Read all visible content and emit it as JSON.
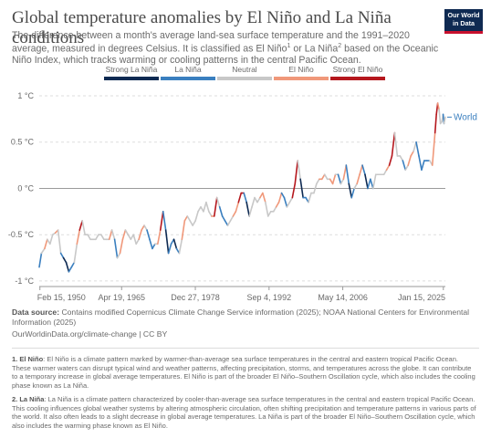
{
  "header": {
    "title": "Global temperature anomalies by El Niño and La Niña conditions",
    "subtitle_part1": "The difference between a month's average land-sea surface temperature and the 1991–2020 average, measured in degrees Celsius. It is classified as El Niño",
    "sup1": "1",
    "subtitle_part2": " or La Niña",
    "sup2": "2",
    "subtitle_part3": " based on the Oceanic Niño Index, which tracks warming or cooling patterns in the central Pacific Ocean."
  },
  "logo": {
    "line1": "Our World",
    "line2": "in Data"
  },
  "legend": [
    {
      "label": "Strong La Niña",
      "color": "#0e2a52"
    },
    {
      "label": "La Niña",
      "color": "#3a7fbf"
    },
    {
      "label": "Neutral",
      "color": "#c8c8c8"
    },
    {
      "label": "El Niño",
      "color": "#f0987a"
    },
    {
      "label": "Strong El Niño",
      "color": "#b5171d"
    }
  ],
  "chart_data": {
    "type": "line",
    "title": "Global temperature anomalies by El Niño and La Niña conditions",
    "ylabel": "",
    "xlabel": "",
    "y_unit": "°C",
    "ylim": [
      -1.05,
      1.0
    ],
    "y_ticks": [
      "1 °C",
      "0.5 °C",
      "0 °C",
      "-0.5 °C",
      "-1 °C"
    ],
    "y_tick_values": [
      1,
      0.5,
      0,
      -0.5,
      -1
    ],
    "x_range": [
      "1950-01-01",
      "2025-06-01"
    ],
    "x_tick_labels": [
      "Feb 15, 1950",
      "Apr 19, 1965",
      "Dec 27, 1978",
      "Sep 4, 1992",
      "May 14, 2006",
      "Jan 15, 2025"
    ],
    "x_tick_dates": [
      "1950-02-15",
      "1965-04-19",
      "1978-12-27",
      "1992-09-04",
      "2006-05-14",
      "2025-01-15"
    ],
    "grid": "horizontal dashed",
    "series_label": "World",
    "last_value": 0.77,
    "categories": [
      "Strong La Niña",
      "La Niña",
      "Neutral",
      "El Niño",
      "Strong El Niño"
    ],
    "series": [
      {
        "name": "World",
        "points": [
          [
            "1950-01-01",
            -0.85,
            "La Niña"
          ],
          [
            "1950-06-01",
            -0.7,
            "La Niña"
          ],
          [
            "1951-01-01",
            -0.65,
            "Neutral"
          ],
          [
            "1951-07-01",
            -0.55,
            "El Niño"
          ],
          [
            "1952-01-01",
            -0.6,
            "Neutral"
          ],
          [
            "1952-07-01",
            -0.5,
            "Neutral"
          ],
          [
            "1953-01-01",
            -0.48,
            "Neutral"
          ],
          [
            "1953-07-01",
            -0.45,
            "El Niño"
          ],
          [
            "1954-01-01",
            -0.7,
            "Neutral"
          ],
          [
            "1954-07-01",
            -0.75,
            "La Niña"
          ],
          [
            "1955-01-01",
            -0.8,
            "Strong La Niña"
          ],
          [
            "1955-07-01",
            -0.9,
            "Strong La Niña"
          ],
          [
            "1956-01-01",
            -0.85,
            "La Niña"
          ],
          [
            "1956-07-01",
            -0.8,
            "La Niña"
          ],
          [
            "1957-01-01",
            -0.6,
            "Neutral"
          ],
          [
            "1957-07-01",
            -0.45,
            "El Niño"
          ],
          [
            "1958-01-01",
            -0.35,
            "Strong El Niño"
          ],
          [
            "1958-07-01",
            -0.5,
            "Neutral"
          ],
          [
            "1959-01-01",
            -0.5,
            "Neutral"
          ],
          [
            "1959-07-01",
            -0.55,
            "Neutral"
          ],
          [
            "1960-01-01",
            -0.55,
            "Neutral"
          ],
          [
            "1960-07-01",
            -0.55,
            "Neutral"
          ],
          [
            "1961-01-01",
            -0.5,
            "Neutral"
          ],
          [
            "1961-07-01",
            -0.5,
            "Neutral"
          ],
          [
            "1962-01-01",
            -0.55,
            "Neutral"
          ],
          [
            "1962-07-01",
            -0.55,
            "Neutral"
          ],
          [
            "1963-01-01",
            -0.55,
            "Neutral"
          ],
          [
            "1963-07-01",
            -0.45,
            "El Niño"
          ],
          [
            "1964-01-01",
            -0.55,
            "Neutral"
          ],
          [
            "1964-07-01",
            -0.75,
            "La Niña"
          ],
          [
            "1965-01-01",
            -0.7,
            "Neutral"
          ],
          [
            "1965-07-01",
            -0.55,
            "El Niño"
          ],
          [
            "1966-01-01",
            -0.45,
            "El Niño"
          ],
          [
            "1966-07-01",
            -0.5,
            "Neutral"
          ],
          [
            "1967-01-01",
            -0.55,
            "Neutral"
          ],
          [
            "1967-07-01",
            -0.5,
            "Neutral"
          ],
          [
            "1968-01-01",
            -0.6,
            "Neutral"
          ],
          [
            "1968-07-01",
            -0.55,
            "Neutral"
          ],
          [
            "1969-01-01",
            -0.45,
            "El Niño"
          ],
          [
            "1969-07-01",
            -0.4,
            "El Niño"
          ],
          [
            "1970-01-01",
            -0.45,
            "Neutral"
          ],
          [
            "1970-07-01",
            -0.55,
            "La Niña"
          ],
          [
            "1971-01-01",
            -0.65,
            "La Niña"
          ],
          [
            "1971-07-01",
            -0.6,
            "La Niña"
          ],
          [
            "1972-01-01",
            -0.6,
            "Neutral"
          ],
          [
            "1972-07-01",
            -0.45,
            "El Niño"
          ],
          [
            "1973-01-01",
            -0.25,
            "Strong El Niño"
          ],
          [
            "1973-07-01",
            -0.45,
            "La Niña"
          ],
          [
            "1974-01-01",
            -0.7,
            "Strong La Niña"
          ],
          [
            "1974-07-01",
            -0.6,
            "La Niña"
          ],
          [
            "1975-01-01",
            -0.55,
            "La Niña"
          ],
          [
            "1975-07-01",
            -0.65,
            "Strong La Niña"
          ],
          [
            "1976-01-01",
            -0.7,
            "La Niña"
          ],
          [
            "1976-07-01",
            -0.55,
            "Neutral"
          ],
          [
            "1977-01-01",
            -0.35,
            "El Niño"
          ],
          [
            "1977-07-01",
            -0.3,
            "El Niño"
          ],
          [
            "1978-01-01",
            -0.35,
            "Neutral"
          ],
          [
            "1978-07-01",
            -0.4,
            "Neutral"
          ],
          [
            "1979-01-01",
            -0.35,
            "Neutral"
          ],
          [
            "1979-07-01",
            -0.25,
            "Neutral"
          ],
          [
            "1980-01-01",
            -0.2,
            "Neutral"
          ],
          [
            "1980-07-01",
            -0.25,
            "Neutral"
          ],
          [
            "1981-01-01",
            -0.15,
            "Neutral"
          ],
          [
            "1981-07-01",
            -0.25,
            "Neutral"
          ],
          [
            "1982-01-01",
            -0.3,
            "Neutral"
          ],
          [
            "1982-07-01",
            -0.3,
            "El Niño"
          ],
          [
            "1983-01-01",
            -0.1,
            "Strong El Niño"
          ],
          [
            "1983-07-01",
            -0.2,
            "Neutral"
          ],
          [
            "1984-01-01",
            -0.3,
            "La Niña"
          ],
          [
            "1984-07-01",
            -0.35,
            "La Niña"
          ],
          [
            "1985-01-01",
            -0.4,
            "La Niña"
          ],
          [
            "1985-07-01",
            -0.35,
            "Neutral"
          ],
          [
            "1986-01-01",
            -0.3,
            "Neutral"
          ],
          [
            "1986-07-01",
            -0.25,
            "El Niño"
          ],
          [
            "1987-01-01",
            -0.15,
            "El Niño"
          ],
          [
            "1987-07-01",
            -0.05,
            "Strong El Niño"
          ],
          [
            "1988-01-01",
            -0.05,
            "Strong El Niño"
          ],
          [
            "1988-07-01",
            -0.15,
            "La Niña"
          ],
          [
            "1989-01-01",
            -0.3,
            "Strong La Niña"
          ],
          [
            "1989-07-01",
            -0.2,
            "Neutral"
          ],
          [
            "1990-01-01",
            -0.1,
            "Neutral"
          ],
          [
            "1990-07-01",
            -0.15,
            "Neutral"
          ],
          [
            "1991-01-01",
            -0.1,
            "Neutral"
          ],
          [
            "1991-07-01",
            -0.05,
            "El Niño"
          ],
          [
            "1992-01-01",
            -0.15,
            "El Niño"
          ],
          [
            "1992-07-01",
            -0.3,
            "Neutral"
          ],
          [
            "1993-01-01",
            -0.25,
            "Neutral"
          ],
          [
            "1993-07-01",
            -0.25,
            "Neutral"
          ],
          [
            "1994-01-01",
            -0.2,
            "Neutral"
          ],
          [
            "1994-07-01",
            -0.15,
            "El Niño"
          ],
          [
            "1995-01-01",
            -0.05,
            "El Niño"
          ],
          [
            "1995-07-01",
            -0.1,
            "La Niña"
          ],
          [
            "1996-01-01",
            -0.2,
            "La Niña"
          ],
          [
            "1996-07-01",
            -0.15,
            "Neutral"
          ],
          [
            "1997-01-01",
            -0.1,
            "Neutral"
          ],
          [
            "1997-07-01",
            0.05,
            "Strong El Niño"
          ],
          [
            "1998-01-01",
            0.3,
            "Strong El Niño"
          ],
          [
            "1998-07-01",
            0.1,
            "Neutral"
          ],
          [
            "1999-01-01",
            -0.1,
            "Strong La Niña"
          ],
          [
            "1999-07-01",
            -0.1,
            "La Niña"
          ],
          [
            "2000-01-01",
            -0.15,
            "La Niña"
          ],
          [
            "2000-07-01",
            -0.05,
            "Neutral"
          ],
          [
            "2001-01-01",
            -0.05,
            "Neutral"
          ],
          [
            "2001-07-01",
            0.05,
            "Neutral"
          ],
          [
            "2002-01-01",
            0.1,
            "Neutral"
          ],
          [
            "2002-07-01",
            0.1,
            "El Niño"
          ],
          [
            "2003-01-01",
            0.15,
            "El Niño"
          ],
          [
            "2003-07-01",
            0.1,
            "Neutral"
          ],
          [
            "2004-01-01",
            0.1,
            "Neutral"
          ],
          [
            "2004-07-01",
            0.05,
            "El Niño"
          ],
          [
            "2005-01-01",
            0.15,
            "El Niño"
          ],
          [
            "2005-07-01",
            0.15,
            "Neutral"
          ],
          [
            "2006-01-01",
            0.05,
            "La Niña"
          ],
          [
            "2006-07-01",
            0.1,
            "Neutral"
          ],
          [
            "2007-01-01",
            0.25,
            "El Niño"
          ],
          [
            "2007-07-01",
            0.05,
            "La Niña"
          ],
          [
            "2008-01-01",
            -0.1,
            "Strong La Niña"
          ],
          [
            "2008-07-01",
            0.0,
            "La Niña"
          ],
          [
            "2009-01-01",
            0.05,
            "Neutral"
          ],
          [
            "2009-07-01",
            0.15,
            "El Niño"
          ],
          [
            "2010-01-01",
            0.25,
            "El Niño"
          ],
          [
            "2010-07-01",
            0.15,
            "La Niña"
          ],
          [
            "2011-01-01",
            0.0,
            "Strong La Niña"
          ],
          [
            "2011-07-01",
            0.1,
            "La Niña"
          ],
          [
            "2012-01-01",
            0.0,
            "La Niña"
          ],
          [
            "2012-07-01",
            0.15,
            "Neutral"
          ],
          [
            "2013-01-01",
            0.15,
            "Neutral"
          ],
          [
            "2013-07-01",
            0.15,
            "Neutral"
          ],
          [
            "2014-01-01",
            0.15,
            "Neutral"
          ],
          [
            "2014-07-01",
            0.2,
            "Neutral"
          ],
          [
            "2015-01-01",
            0.25,
            "El Niño"
          ],
          [
            "2015-07-01",
            0.35,
            "Strong El Niño"
          ],
          [
            "2016-01-01",
            0.6,
            "Strong El Niño"
          ],
          [
            "2016-07-01",
            0.35,
            "Neutral"
          ],
          [
            "2017-01-01",
            0.35,
            "Neutral"
          ],
          [
            "2017-07-01",
            0.3,
            "Neutral"
          ],
          [
            "2018-01-01",
            0.2,
            "La Niña"
          ],
          [
            "2018-07-01",
            0.25,
            "Neutral"
          ],
          [
            "2019-01-01",
            0.35,
            "El Niño"
          ],
          [
            "2019-07-01",
            0.4,
            "El Niño"
          ],
          [
            "2020-01-01",
            0.5,
            "Neutral"
          ],
          [
            "2020-07-01",
            0.35,
            "La Niña"
          ],
          [
            "2021-01-01",
            0.2,
            "La Niña"
          ],
          [
            "2021-07-01",
            0.3,
            "La Niña"
          ],
          [
            "2022-01-01",
            0.3,
            "La Niña"
          ],
          [
            "2022-07-01",
            0.3,
            "La Niña"
          ],
          [
            "2023-01-01",
            0.25,
            "Neutral"
          ],
          [
            "2023-07-01",
            0.6,
            "El Niño"
          ],
          [
            "2023-10-01",
            0.8,
            "Strong El Niño"
          ],
          [
            "2024-01-01",
            0.92,
            "Strong El Niño"
          ],
          [
            "2024-04-01",
            0.85,
            "El Niño"
          ],
          [
            "2024-07-01",
            0.7,
            "Neutral"
          ],
          [
            "2024-10-01",
            0.72,
            "Neutral"
          ],
          [
            "2025-01-01",
            0.8,
            "Neutral"
          ],
          [
            "2025-03-01",
            0.7,
            "La Niña"
          ],
          [
            "2025-06-01",
            0.77,
            "Neutral"
          ]
        ]
      }
    ]
  },
  "source": {
    "label": "Data source:",
    "text": " Contains modified Copernicus Climate Change Service information (2025); NOAA National Centers for Environmental Information (2025)",
    "link": "OurWorldinData.org/climate-change | CC BY"
  },
  "notes": [
    {
      "label": "1. El Niño",
      "text": ": El Niño is a climate pattern marked by warmer-than-average sea surface temperatures in the central and eastern tropical Pacific Ocean. These warmer waters can disrupt typical wind and weather patterns, affecting precipitation, storms, and temperatures across the globe. It can contribute to a temporary increase in global average temperatures. El Niño is part of the broader El Niño–Southern Oscillation cycle, which also includes the cooling phase known as La Niña."
    },
    {
      "label": "2. La Niña",
      "text": ": La Niña is a climate pattern characterized by cooler-than-average sea surface temperatures in the central and eastern tropical Pacific Ocean. This cooling influences global weather systems by altering atmospheric circulation, often shifting precipitation and temperature patterns in various parts of the world. It also often leads to a slight decrease in global average temperatures. La Niña is part of the broader El Niño–Southern Oscillation cycle, which also includes the warming phase known as El Niño."
    }
  ]
}
